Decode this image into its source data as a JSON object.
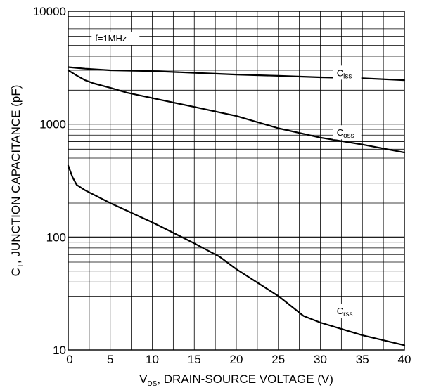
{
  "chart_data": {
    "type": "line",
    "xlabel": {
      "prefix": "V",
      "sub": "DS",
      "suffix": ", DRAIN-SOURCE VOLTAGE (V)"
    },
    "ylabel": {
      "prefix": "C",
      "sub": "T",
      "suffix": ", JUNCTION CAPACITANCE (pF)"
    },
    "xlim": [
      0,
      40
    ],
    "ylim": [
      10,
      10000
    ],
    "yscale": "log",
    "grid": true,
    "xticks": [
      "0",
      "5",
      "10",
      "15",
      "20",
      "25",
      "30",
      "35",
      "40"
    ],
    "yticks": [
      "10",
      "100",
      "1000",
      "10000"
    ],
    "annotation": "f=1MHz",
    "series": [
      {
        "name": "C",
        "name_sub": "iss",
        "x": [
          0,
          1,
          2,
          5,
          10,
          15,
          20,
          25,
          30,
          35,
          40
        ],
        "y": [
          3200,
          3150,
          3100,
          3000,
          2950,
          2850,
          2750,
          2680,
          2600,
          2550,
          2450
        ]
      },
      {
        "name": "C",
        "name_sub": "oss",
        "x": [
          0,
          1,
          2,
          3,
          5,
          7,
          10,
          15,
          20,
          25,
          30,
          35,
          40
        ],
        "y": [
          3000,
          2700,
          2450,
          2300,
          2100,
          1900,
          1700,
          1420,
          1180,
          920,
          760,
          660,
          560
        ]
      },
      {
        "name": "C",
        "name_sub": "rss",
        "x": [
          0,
          0.5,
          1,
          2,
          5,
          10,
          15,
          18,
          20,
          25,
          28,
          30,
          35,
          40
        ],
        "y": [
          430,
          340,
          290,
          260,
          200,
          135,
          88,
          67,
          52,
          30,
          20,
          17.5,
          13.5,
          11
        ]
      }
    ]
  }
}
